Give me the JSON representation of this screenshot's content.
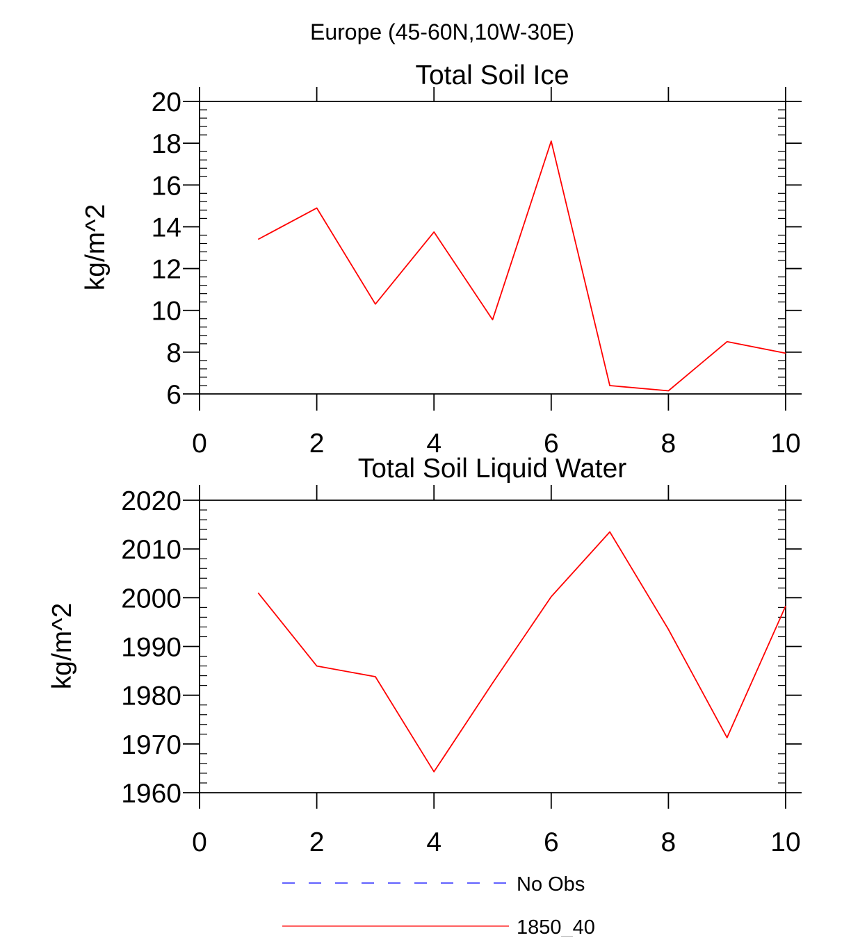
{
  "figure": {
    "suptitle": "Europe (45-60N,10W-30E)"
  },
  "chart_data": [
    {
      "type": "line",
      "title": "Total Soil Ice",
      "xlabel": "",
      "ylabel": "kg/m^2",
      "xlim": [
        0,
        10
      ],
      "ylim": [
        6,
        20
      ],
      "xticks": [
        0,
        2,
        4,
        6,
        8,
        10
      ],
      "xtick_labels": [
        "0",
        "2",
        "4",
        "6",
        "8",
        "10"
      ],
      "yticks": [
        6,
        8,
        10,
        12,
        14,
        16,
        18,
        20
      ],
      "ytick_labels": [
        "6",
        "8",
        "10",
        "12",
        "14",
        "16",
        "18",
        "20"
      ],
      "grid": false,
      "series": [
        {
          "name": "1850_40",
          "color": "#ff0000",
          "x": [
            1,
            2,
            3,
            4,
            5,
            6,
            7,
            8,
            9,
            10
          ],
          "y": [
            13.4,
            14.9,
            10.3,
            13.75,
            9.55,
            18.1,
            6.4,
            6.15,
            8.5,
            7.95
          ]
        }
      ]
    },
    {
      "type": "line",
      "title": "Total Soil Liquid Water",
      "xlabel": "",
      "ylabel": "kg/m^2",
      "xlim": [
        0,
        10
      ],
      "ylim": [
        1960,
        2020
      ],
      "xticks": [
        0,
        2,
        4,
        6,
        8,
        10
      ],
      "xtick_labels": [
        "0",
        "2",
        "4",
        "6",
        "8",
        "10"
      ],
      "yticks": [
        1960,
        1970,
        1980,
        1990,
        2000,
        2010,
        2020
      ],
      "ytick_labels": [
        "1960",
        "1970",
        "1980",
        "1990",
        "2000",
        "2010",
        "2020"
      ],
      "grid": false,
      "series": [
        {
          "name": "1850_40",
          "color": "#ff0000",
          "x": [
            1,
            2,
            3,
            4,
            5,
            6,
            7,
            8,
            9,
            10
          ],
          "y": [
            2001,
            1986,
            1983.8,
            1964.3,
            1982.5,
            2000.2,
            2013.5,
            1993.5,
            1971.3,
            1998.3
          ]
        }
      ]
    }
  ],
  "legend": {
    "placement": "bottom-center",
    "entries": [
      {
        "label": "No Obs",
        "color": "#0000ff",
        "style": "dashed"
      },
      {
        "label": "1850_40",
        "color": "#ff0000",
        "style": "solid"
      }
    ]
  }
}
